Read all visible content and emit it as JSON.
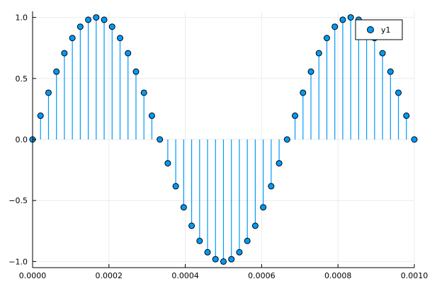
{
  "chart_data": {
    "type": "stem",
    "x": [
      0,
      2.08333e-05,
      4.16667e-05,
      6.25e-05,
      8.33333e-05,
      0.0001041667,
      0.000125,
      0.0001458333,
      0.0001666667,
      0.0001875,
      0.0002083333,
      0.0002291667,
      0.00025,
      0.0002708333,
      0.0002916667,
      0.0003125,
      0.0003333333,
      0.0003541667,
      0.000375,
      0.0003958333,
      0.0004166667,
      0.0004375,
      0.0004583333,
      0.0004791667,
      0.0005,
      0.0005208333,
      0.0005416667,
      0.0005625,
      0.0005833333,
      0.0006041667,
      0.000625,
      0.0006458333,
      0.0006666667,
      0.0006875,
      0.0007083333,
      0.0007291667,
      0.00075,
      0.0007708333,
      0.0007916667,
      0.0008125,
      0.0008333333,
      0.0008541667,
      0.000875,
      0.0008958333,
      0.0009166667,
      0.0009375,
      0.0009583333,
      0.0009791667,
      0.001
    ],
    "series": [
      {
        "name": "y1",
        "values": [
          0,
          0.195,
          0.383,
          0.556,
          0.707,
          0.831,
          0.924,
          0.981,
          1.0,
          0.981,
          0.924,
          0.831,
          0.707,
          0.556,
          0.383,
          0.195,
          0,
          -0.195,
          -0.383,
          -0.556,
          -0.707,
          -0.831,
          -0.924,
          -0.981,
          -1.0,
          -0.981,
          -0.924,
          -0.831,
          -0.707,
          -0.556,
          -0.383,
          -0.195,
          0,
          0.195,
          0.383,
          0.556,
          0.707,
          0.831,
          0.924,
          0.981,
          1.0,
          0.981,
          0.924,
          0.831,
          0.707,
          0.556,
          0.383,
          0.195,
          0
        ]
      }
    ],
    "xlim": [
      0,
      0.001
    ],
    "ylim": [
      -1.05,
      1.05
    ],
    "xticks": [
      0,
      0.0002,
      0.0004,
      0.0006,
      0.0008,
      0.001
    ],
    "xtick_labels": [
      "0.0000",
      "0.0002",
      "0.0004",
      "0.0006",
      "0.0008",
      "0.0010"
    ],
    "yticks": [
      -1.0,
      -0.5,
      0.0,
      0.5,
      1.0
    ],
    "ytick_labels": [
      "−1.0",
      "−0.5",
      "0.0",
      "0.5",
      "1.0"
    ],
    "grid": true,
    "legend_position": "top-right",
    "colors": {
      "series": "#009AFA",
      "marker_edge": "#000000",
      "grid": "#EBEBEB",
      "axis": "#000000"
    }
  }
}
